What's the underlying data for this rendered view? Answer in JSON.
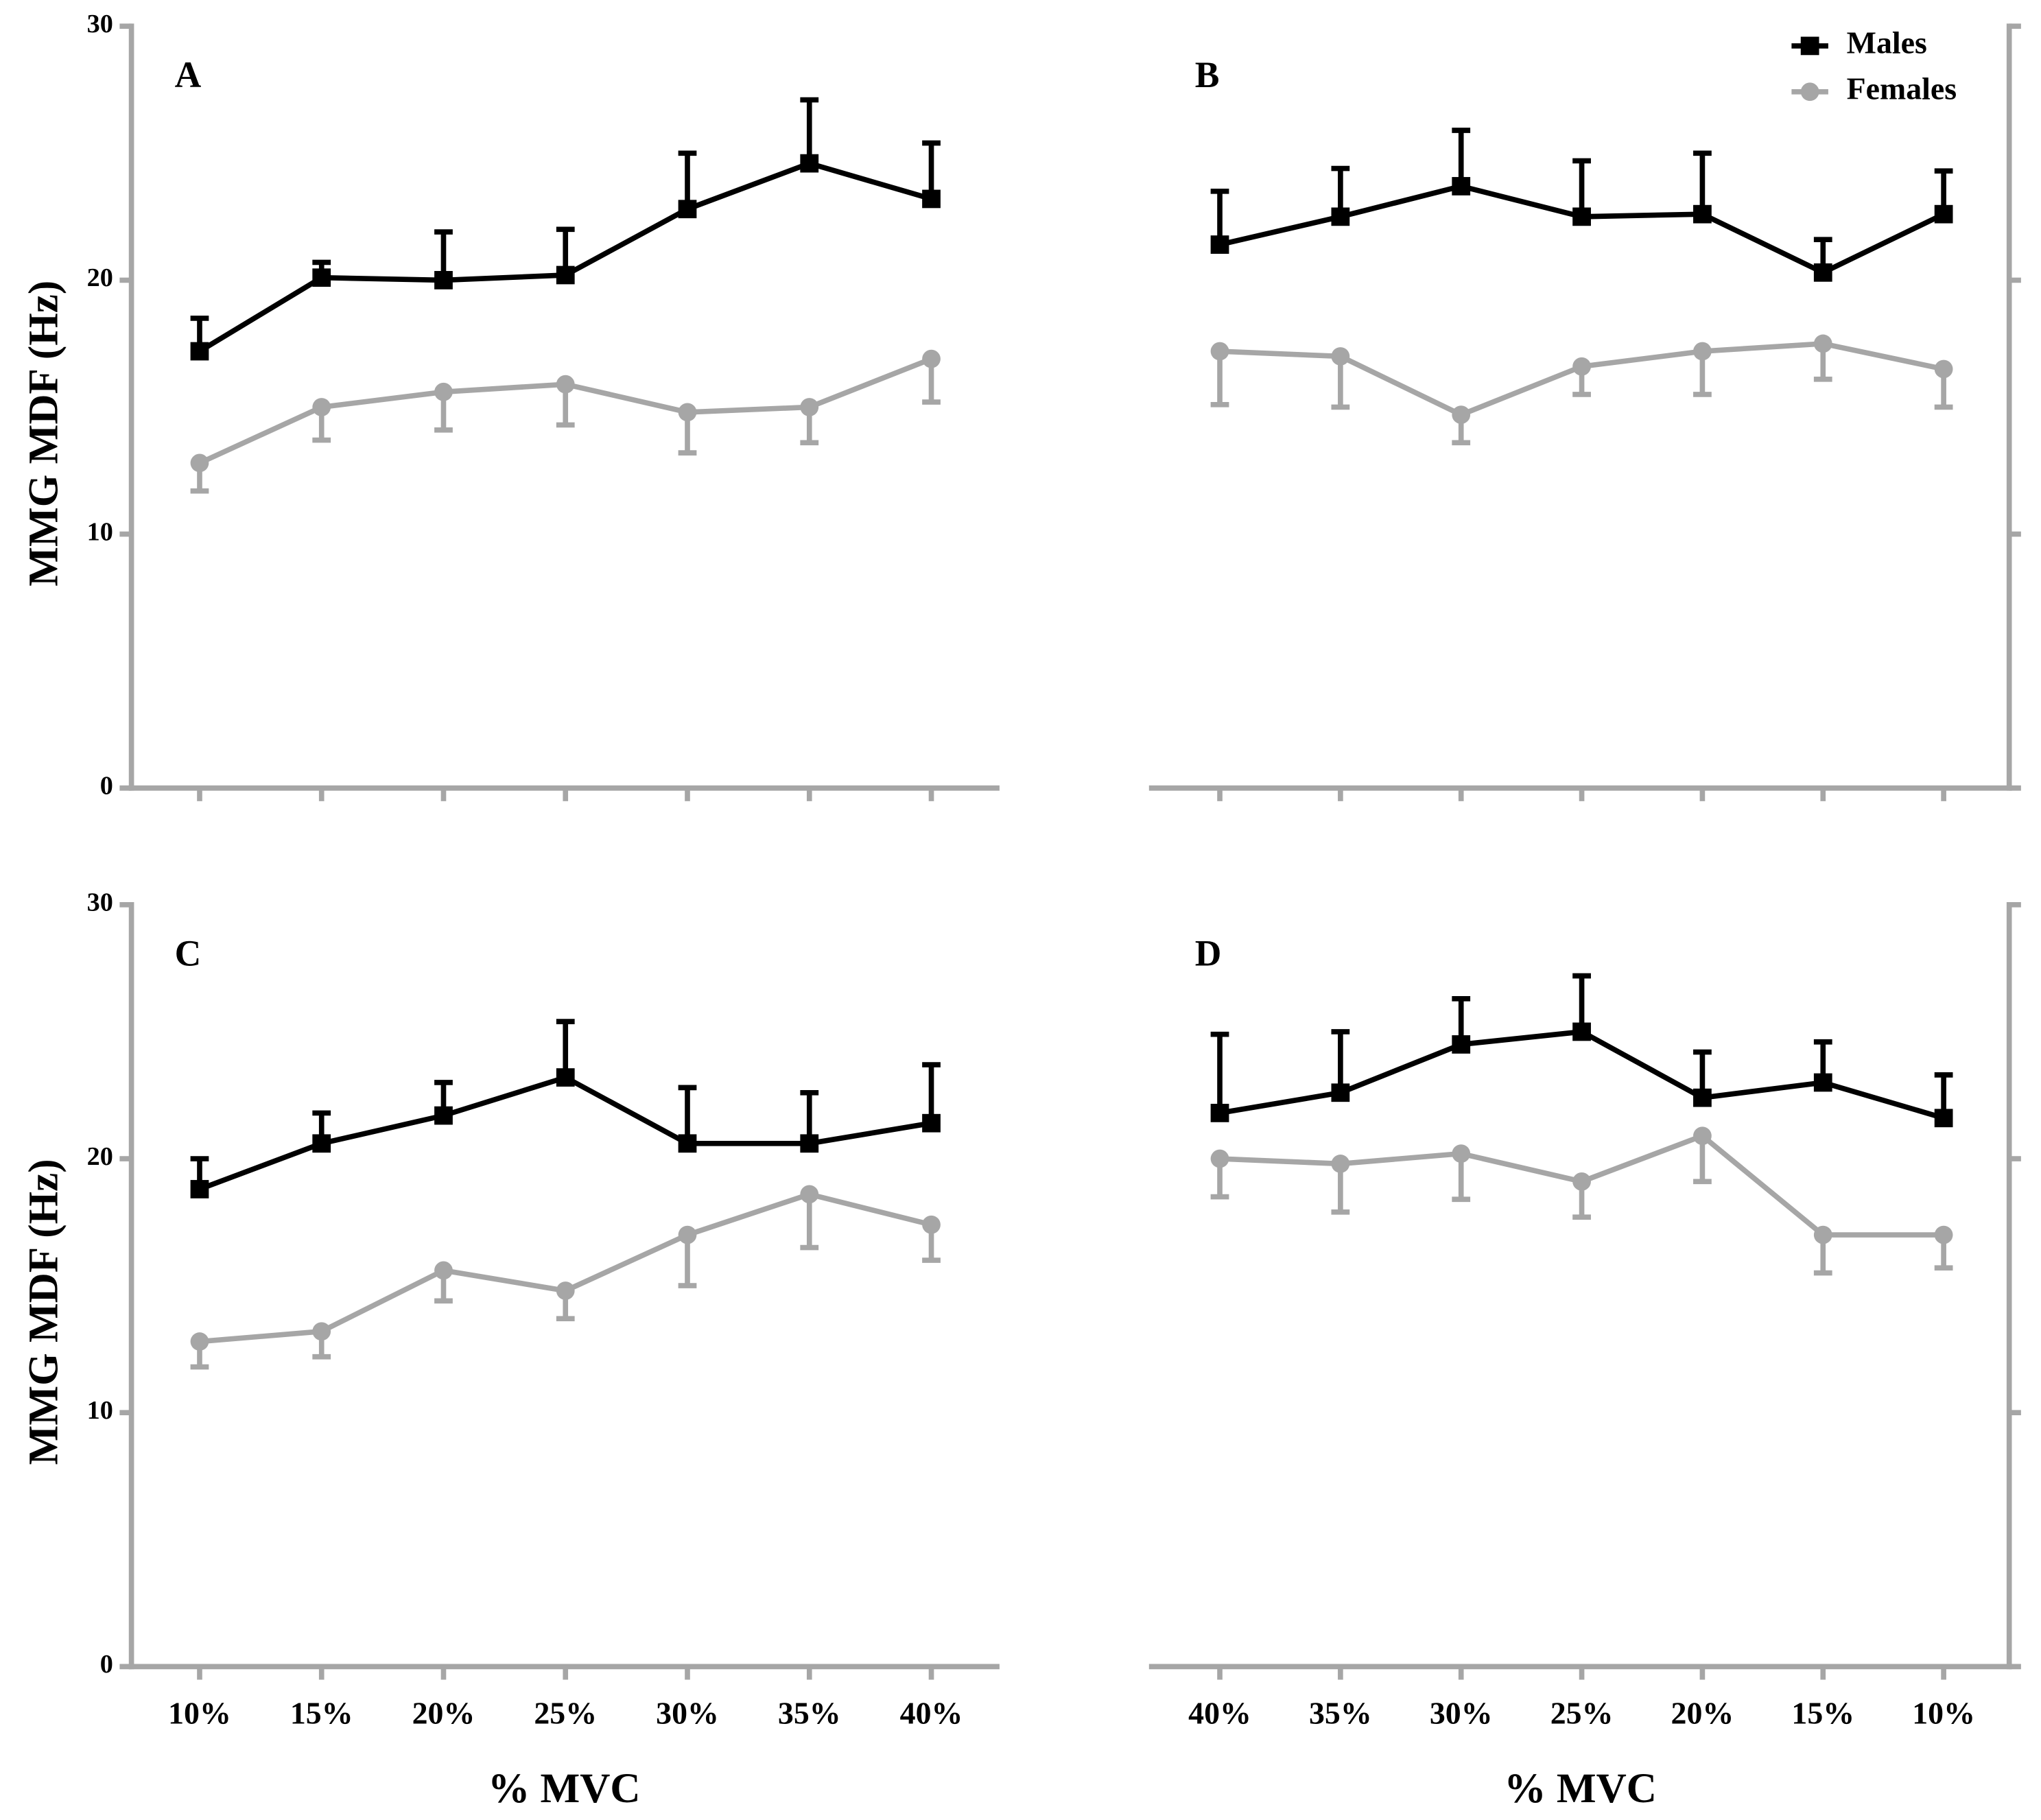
{
  "chart_data": [
    {
      "type": "line",
      "label": "A",
      "yaxis_side": "left",
      "show_xticklabels": false,
      "categories": [
        "10%",
        "15%",
        "20%",
        "25%",
        "30%",
        "35%",
        "40%"
      ],
      "ylabel": "MMG  MDF (Hz)",
      "ylim": [
        0,
        30
      ],
      "yticks": [
        0,
        10,
        20,
        30
      ],
      "series": [
        {
          "name": "Males",
          "color": "#000000",
          "marker": "square",
          "error_direction": "up",
          "values": [
            17.2,
            20.1,
            20.0,
            20.2,
            22.8,
            24.6,
            23.2
          ],
          "errors": [
            1.3,
            0.6,
            1.9,
            1.8,
            2.2,
            2.5,
            2.2
          ]
        },
        {
          "name": "Females",
          "color": "#a6a6a6",
          "marker": "circle",
          "error_direction": "down",
          "values": [
            12.8,
            15.0,
            15.6,
            15.9,
            14.8,
            15.0,
            16.9
          ],
          "errors": [
            1.1,
            1.3,
            1.5,
            1.6,
            1.6,
            1.4,
            1.7
          ]
        }
      ]
    },
    {
      "type": "line",
      "label": "B",
      "yaxis_side": "right",
      "show_xticklabels": false,
      "legend": true,
      "categories": [
        "40%",
        "35%",
        "30%",
        "25%",
        "20%",
        "15%",
        "10%"
      ],
      "ylim": [
        0,
        30
      ],
      "yticks": [
        0,
        10,
        20,
        30
      ],
      "series": [
        {
          "name": "Males",
          "color": "#000000",
          "marker": "square",
          "error_direction": "up",
          "values": [
            21.4,
            22.5,
            23.7,
            22.5,
            22.6,
            20.3,
            22.6
          ],
          "errors": [
            2.1,
            1.9,
            2.2,
            2.2,
            2.4,
            1.3,
            1.7
          ]
        },
        {
          "name": "Females",
          "color": "#a6a6a6",
          "marker": "circle",
          "error_direction": "down",
          "values": [
            17.2,
            17.0,
            14.7,
            16.6,
            17.2,
            17.5,
            16.5
          ],
          "errors": [
            2.1,
            2.0,
            1.1,
            1.1,
            1.7,
            1.4,
            1.5
          ]
        }
      ]
    },
    {
      "type": "line",
      "label": "C",
      "yaxis_side": "left",
      "show_xticklabels": true,
      "categories": [
        "10%",
        "15%",
        "20%",
        "25%",
        "30%",
        "35%",
        "40%"
      ],
      "xlabel": "% MVC",
      "ylabel": "MMG  MDF (Hz)",
      "ylim": [
        0,
        30
      ],
      "yticks": [
        0,
        10,
        20,
        30
      ],
      "series": [
        {
          "name": "Males",
          "color": "#000000",
          "marker": "square",
          "error_direction": "up",
          "values": [
            18.8,
            20.6,
            21.7,
            23.2,
            20.6,
            20.6,
            21.4
          ],
          "errors": [
            1.2,
            1.2,
            1.3,
            2.2,
            2.2,
            2.0,
            2.3
          ]
        },
        {
          "name": "Females",
          "color": "#a6a6a6",
          "marker": "circle",
          "error_direction": "down",
          "values": [
            12.8,
            13.2,
            15.6,
            14.8,
            17.0,
            18.6,
            17.4
          ],
          "errors": [
            1.0,
            1.0,
            1.2,
            1.1,
            2.0,
            2.1,
            1.4
          ]
        }
      ]
    },
    {
      "type": "line",
      "label": "D",
      "yaxis_side": "right",
      "show_xticklabels": true,
      "categories": [
        "40%",
        "35%",
        "30%",
        "25%",
        "20%",
        "15%",
        "10%"
      ],
      "xlabel": "% MVC",
      "ylim": [
        0,
        30
      ],
      "yticks": [
        0,
        10,
        20,
        30
      ],
      "series": [
        {
          "name": "Males",
          "color": "#000000",
          "marker": "square",
          "error_direction": "up",
          "values": [
            21.8,
            22.6,
            24.5,
            25.0,
            22.4,
            23.0,
            21.6
          ],
          "errors": [
            3.1,
            2.4,
            1.8,
            2.2,
            1.8,
            1.6,
            1.7
          ]
        },
        {
          "name": "Females",
          "color": "#a6a6a6",
          "marker": "circle",
          "error_direction": "down",
          "values": [
            20.0,
            19.8,
            20.2,
            19.1,
            20.9,
            17.0,
            17.0
          ],
          "errors": [
            1.5,
            1.9,
            1.8,
            1.4,
            1.8,
            1.5,
            1.3
          ]
        }
      ]
    }
  ]
}
